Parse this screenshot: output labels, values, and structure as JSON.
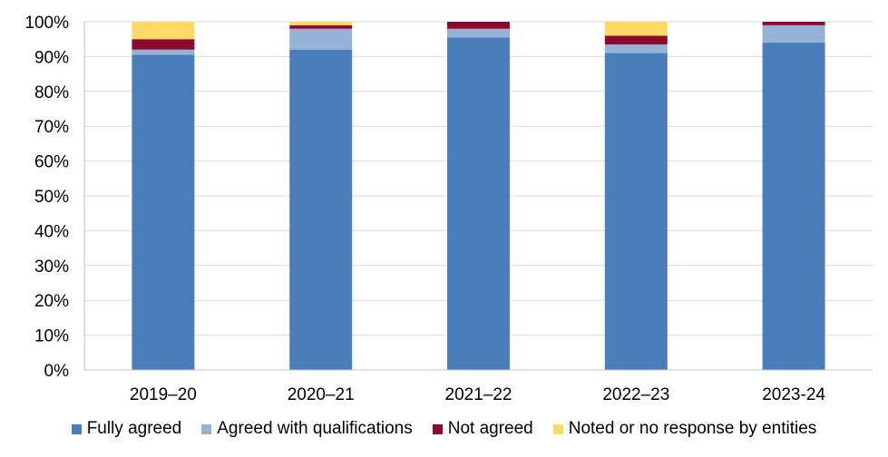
{
  "chart_data": {
    "type": "bar",
    "stacked": true,
    "categories": [
      "2019–20",
      "2020–21",
      "2021–22",
      "2022–23",
      "2023-24"
    ],
    "series": [
      {
        "name": "Fully agreed",
        "color": "#4A7EBB",
        "values": [
          90.5,
          92.0,
          95.5,
          91.0,
          94.0
        ]
      },
      {
        "name": "Agreed with qualifications",
        "color": "#95B3D7",
        "values": [
          1.5,
          6.0,
          2.5,
          2.5,
          5.0
        ]
      },
      {
        "name": "Not agreed",
        "color": "#8B0A2E",
        "values": [
          3.0,
          1.0,
          2.0,
          2.5,
          1.0
        ]
      },
      {
        "name": "Noted or no response by entities",
        "color": "#FFD966",
        "values": [
          5.0,
          1.0,
          0.0,
          4.0,
          0.0
        ]
      }
    ],
    "yticks": [
      "0%",
      "10%",
      "20%",
      "30%",
      "40%",
      "50%",
      "60%",
      "70%",
      "80%",
      "90%",
      "100%"
    ],
    "ylim": [
      0,
      100
    ],
    "grid": true,
    "legend_position": "bottom",
    "title": "",
    "xlabel": "",
    "ylabel": ""
  }
}
